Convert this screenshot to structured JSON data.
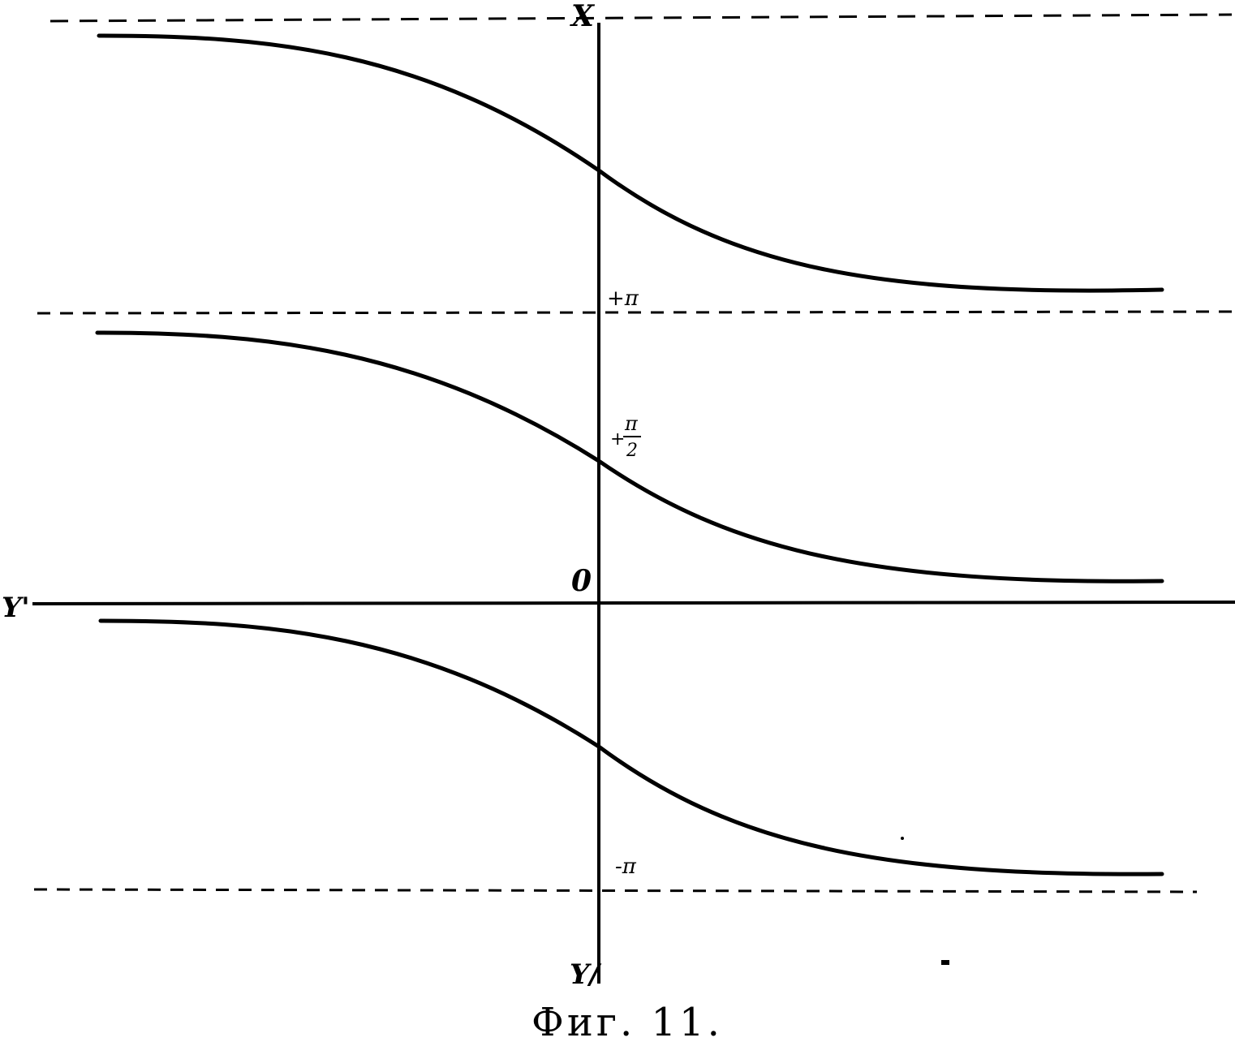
{
  "axes": {
    "vertical_top": "X",
    "vertical_bottom": "Y/",
    "horizontal_left": "Y'",
    "origin": "0"
  },
  "ticks": {
    "plus_pi": "+π",
    "plus_pi_half_num": "π",
    "plus_pi_half_den": "2",
    "plus_pi_half_sign": "+",
    "minus_pi": "-π"
  },
  "caption": "Фиг. 11."
}
